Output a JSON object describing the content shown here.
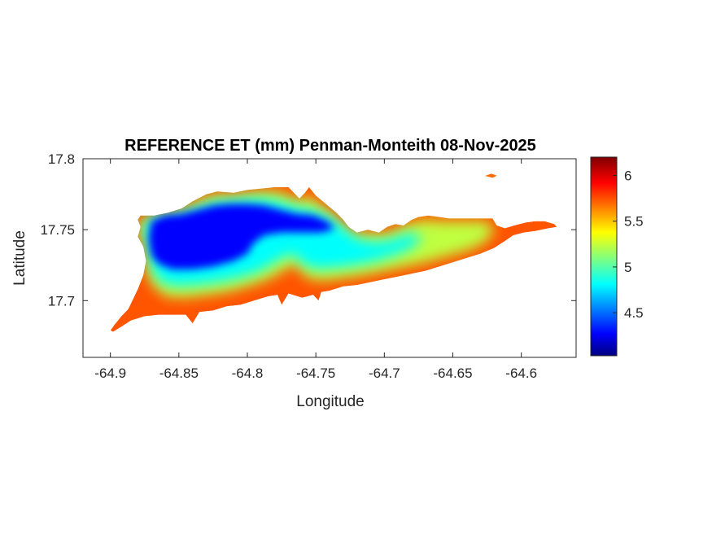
{
  "chart_data": {
    "type": "heatmap",
    "title": "REFERENCE ET (mm) Penman-Monteith 08-Nov-2025",
    "xlabel": "Longitude",
    "ylabel": "Latitude",
    "xlim": [
      -64.92,
      -64.56
    ],
    "ylim": [
      17.66,
      17.8
    ],
    "xticks": [
      -64.9,
      -64.85,
      -64.8,
      -64.75,
      -64.7,
      -64.65,
      -64.6
    ],
    "xtick_labels": [
      "-64.9",
      "-64.85",
      "-64.8",
      "-64.75",
      "-64.7",
      "-64.65",
      "-64.6"
    ],
    "yticks": [
      17.7,
      17.75,
      17.8
    ],
    "ytick_labels": [
      "17.7",
      "17.75",
      "17.8"
    ],
    "colorbar": {
      "colormap": "jet",
      "limits": [
        4.03,
        6.2
      ],
      "ticks": [
        4.5,
        5,
        5.5,
        6
      ],
      "tick_labels": [
        "4.5",
        "5",
        "5.5",
        "6"
      ]
    },
    "regions": [
      {
        "name": "",
        "value": 5.75,
        "polygon": [
          [
            -64.9,
            17.679
          ],
          [
            -64.897,
            17.683
          ],
          [
            -64.892,
            17.689
          ],
          [
            -64.887,
            17.694
          ],
          [
            -64.884,
            17.7
          ],
          [
            -64.88,
            17.708
          ],
          [
            -64.876,
            17.718
          ],
          [
            -64.874,
            17.728
          ],
          [
            -64.876,
            17.738
          ],
          [
            -64.88,
            17.745
          ],
          [
            -64.878,
            17.752
          ],
          [
            -64.88,
            17.757
          ],
          [
            -64.878,
            17.76
          ],
          [
            -64.868,
            17.76
          ],
          [
            -64.858,
            17.762
          ],
          [
            -64.848,
            17.765
          ],
          [
            -64.84,
            17.77
          ],
          [
            -64.83,
            17.775
          ],
          [
            -64.822,
            17.777
          ],
          [
            -64.81,
            17.776
          ],
          [
            -64.8,
            17.778
          ],
          [
            -64.79,
            17.779
          ],
          [
            -64.78,
            17.78
          ],
          [
            -64.77,
            17.78
          ],
          [
            -64.762,
            17.772
          ],
          [
            -64.758,
            17.776
          ],
          [
            -64.755,
            17.78
          ],
          [
            -64.75,
            17.774
          ],
          [
            -64.745,
            17.77
          ],
          [
            -64.74,
            17.766
          ],
          [
            -64.735,
            17.762
          ],
          [
            -64.73,
            17.757
          ],
          [
            -64.726,
            17.752
          ],
          [
            -64.72,
            17.748
          ],
          [
            -64.712,
            17.75
          ],
          [
            -64.704,
            17.748
          ],
          [
            -64.698,
            17.752
          ],
          [
            -64.692,
            17.754
          ],
          [
            -64.686,
            17.753
          ],
          [
            -64.68,
            17.757
          ],
          [
            -64.675,
            17.759
          ],
          [
            -64.668,
            17.76
          ],
          [
            -64.66,
            17.759
          ],
          [
            -64.653,
            17.758
          ],
          [
            -64.646,
            17.758
          ],
          [
            -64.64,
            17.758
          ],
          [
            -64.633,
            17.758
          ],
          [
            -64.627,
            17.758
          ],
          [
            -64.621,
            17.758
          ],
          [
            -64.618,
            17.753
          ],
          [
            -64.612,
            17.751
          ],
          [
            -64.605,
            17.753
          ],
          [
            -64.597,
            17.755
          ],
          [
            -64.59,
            17.756
          ],
          [
            -64.583,
            17.756
          ],
          [
            -64.576,
            17.754
          ],
          [
            -64.574,
            17.752
          ],
          [
            -64.58,
            17.751
          ],
          [
            -64.59,
            17.749
          ],
          [
            -64.598,
            17.748
          ],
          [
            -64.606,
            17.746
          ],
          [
            -64.612,
            17.742
          ],
          [
            -64.62,
            17.737
          ],
          [
            -64.63,
            17.733
          ],
          [
            -64.64,
            17.73
          ],
          [
            -64.65,
            17.727
          ],
          [
            -64.66,
            17.724
          ],
          [
            -64.67,
            17.721
          ],
          [
            -64.68,
            17.719
          ],
          [
            -64.69,
            17.717
          ],
          [
            -64.7,
            17.715
          ],
          [
            -64.71,
            17.713
          ],
          [
            -64.72,
            17.711
          ],
          [
            -64.73,
            17.71
          ],
          [
            -64.74,
            17.707
          ],
          [
            -64.746,
            17.706
          ],
          [
            -64.748,
            17.7
          ],
          [
            -64.752,
            17.704
          ],
          [
            -64.76,
            17.702
          ],
          [
            -64.77,
            17.705
          ],
          [
            -64.775,
            17.697
          ],
          [
            -64.778,
            17.704
          ],
          [
            -64.785,
            17.703
          ],
          [
            -64.795,
            17.7
          ],
          [
            -64.805,
            17.697
          ],
          [
            -64.815,
            17.696
          ],
          [
            -64.825,
            17.693
          ],
          [
            -64.835,
            17.692
          ],
          [
            -64.84,
            17.684
          ],
          [
            -64.845,
            17.69
          ],
          [
            -64.855,
            17.69
          ],
          [
            -64.865,
            17.69
          ],
          [
            -64.875,
            17.689
          ],
          [
            -64.885,
            17.686
          ],
          [
            -64.893,
            17.681
          ],
          [
            -64.898,
            17.678
          ]
        ]
      },
      {
        "name": "",
        "value": 5.25,
        "polygon": [
          [
            -64.874,
            17.73
          ],
          [
            -64.876,
            17.74
          ],
          [
            -64.879,
            17.748
          ],
          [
            -64.878,
            17.757
          ],
          [
            -64.868,
            17.76
          ],
          [
            -64.858,
            17.762
          ],
          [
            -64.848,
            17.764
          ],
          [
            -64.84,
            17.768
          ],
          [
            -64.83,
            17.773
          ],
          [
            -64.82,
            17.775
          ],
          [
            -64.81,
            17.774
          ],
          [
            -64.8,
            17.776
          ],
          [
            -64.79,
            17.777
          ],
          [
            -64.78,
            17.777
          ],
          [
            -64.772,
            17.775
          ],
          [
            -64.762,
            17.77
          ],
          [
            -64.755,
            17.774
          ],
          [
            -64.748,
            17.768
          ],
          [
            -64.74,
            17.763
          ],
          [
            -64.735,
            17.758
          ],
          [
            -64.728,
            17.752
          ],
          [
            -64.72,
            17.747
          ],
          [
            -64.71,
            17.748
          ],
          [
            -64.7,
            17.747
          ],
          [
            -64.69,
            17.751
          ],
          [
            -64.68,
            17.755
          ],
          [
            -64.67,
            17.757
          ],
          [
            -64.66,
            17.756
          ],
          [
            -64.65,
            17.756
          ],
          [
            -64.64,
            17.756
          ],
          [
            -64.63,
            17.756
          ],
          [
            -64.623,
            17.755
          ],
          [
            -64.62,
            17.748
          ],
          [
            -64.628,
            17.74
          ],
          [
            -64.64,
            17.735
          ],
          [
            -64.655,
            17.731
          ],
          [
            -64.67,
            17.727
          ],
          [
            -64.685,
            17.724
          ],
          [
            -64.7,
            17.721
          ],
          [
            -64.715,
            17.718
          ],
          [
            -64.73,
            17.716
          ],
          [
            -64.745,
            17.714
          ],
          [
            -64.757,
            17.716
          ],
          [
            -64.765,
            17.726
          ],
          [
            -64.772,
            17.722
          ],
          [
            -64.785,
            17.715
          ],
          [
            -64.8,
            17.71
          ],
          [
            -64.815,
            17.706
          ],
          [
            -64.83,
            17.704
          ],
          [
            -64.845,
            17.702
          ],
          [
            -64.86,
            17.703
          ],
          [
            -64.87,
            17.712
          ],
          [
            -64.874,
            17.722
          ]
        ]
      },
      {
        "name": "",
        "value": 4.85,
        "polygon": [
          [
            -64.872,
            17.73
          ],
          [
            -64.874,
            17.742
          ],
          [
            -64.876,
            17.752
          ],
          [
            -64.872,
            17.758
          ],
          [
            -64.86,
            17.76
          ],
          [
            -64.848,
            17.762
          ],
          [
            -64.836,
            17.766
          ],
          [
            -64.824,
            17.77
          ],
          [
            -64.812,
            17.771
          ],
          [
            -64.8,
            17.772
          ],
          [
            -64.788,
            17.772
          ],
          [
            -64.776,
            17.77
          ],
          [
            -64.764,
            17.766
          ],
          [
            -64.752,
            17.764
          ],
          [
            -64.742,
            17.76
          ],
          [
            -64.734,
            17.755
          ],
          [
            -64.728,
            17.75
          ],
          [
            -64.72,
            17.744
          ],
          [
            -64.71,
            17.742
          ],
          [
            -64.7,
            17.742
          ],
          [
            -64.69,
            17.745
          ],
          [
            -64.68,
            17.748
          ],
          [
            -64.672,
            17.744
          ],
          [
            -64.68,
            17.737
          ],
          [
            -64.692,
            17.732
          ],
          [
            -64.705,
            17.728
          ],
          [
            -64.72,
            17.725
          ],
          [
            -64.735,
            17.723
          ],
          [
            -64.75,
            17.722
          ],
          [
            -64.76,
            17.726
          ],
          [
            -64.767,
            17.733
          ],
          [
            -64.778,
            17.728
          ],
          [
            -64.79,
            17.721
          ],
          [
            -64.805,
            17.716
          ],
          [
            -64.82,
            17.713
          ],
          [
            -64.835,
            17.711
          ],
          [
            -64.85,
            17.71
          ],
          [
            -64.862,
            17.712
          ],
          [
            -64.869,
            17.72
          ]
        ]
      },
      {
        "name": "",
        "value": 4.3,
        "polygon": [
          [
            -64.87,
            17.732
          ],
          [
            -64.872,
            17.744
          ],
          [
            -64.87,
            17.756
          ],
          [
            -64.86,
            17.76
          ],
          [
            -64.848,
            17.761
          ],
          [
            -64.836,
            17.764
          ],
          [
            -64.824,
            17.767
          ],
          [
            -64.812,
            17.768
          ],
          [
            -64.8,
            17.768
          ],
          [
            -64.788,
            17.767
          ],
          [
            -64.776,
            17.764
          ],
          [
            -64.764,
            17.761
          ],
          [
            -64.752,
            17.76
          ],
          [
            -64.742,
            17.756
          ],
          [
            -64.736,
            17.751
          ],
          [
            -64.746,
            17.748
          ],
          [
            -64.76,
            17.748
          ],
          [
            -64.775,
            17.748
          ],
          [
            -64.788,
            17.746
          ],
          [
            -64.796,
            17.74
          ],
          [
            -64.8,
            17.733
          ],
          [
            -64.81,
            17.728
          ],
          [
            -64.825,
            17.724
          ],
          [
            -64.84,
            17.722
          ],
          [
            -64.855,
            17.722
          ],
          [
            -64.865,
            17.726
          ]
        ]
      }
    ],
    "extra_patches": [
      {
        "name": "",
        "value": 5.7,
        "polygon": [
          [
            -64.625,
            17.788
          ],
          [
            -64.622,
            17.789
          ],
          [
            -64.619,
            17.788
          ],
          [
            -64.621,
            17.787
          ]
        ]
      }
    ]
  }
}
